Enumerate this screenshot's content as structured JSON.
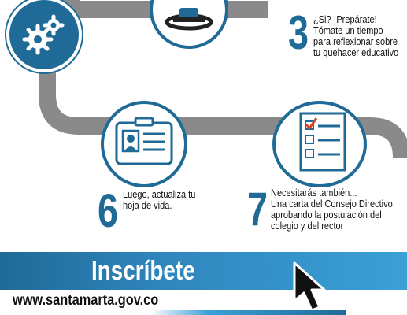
{
  "steps": [
    {
      "number": "3",
      "lines": [
        "¿Si? ¡Prepárate!",
        "Tómate un tiempo",
        "para reflexionar sobre",
        "tu quehacer educativo"
      ]
    },
    {
      "number": "6",
      "lines": [
        "Luego, actualiza tu",
        "hoja de vida."
      ]
    },
    {
      "number": "7",
      "lines": [
        "Necesitarás también...",
        "Una carta del Consejo Directivo",
        "aprobando la postulación del",
        "colegio y del rector"
      ]
    }
  ],
  "banner": {
    "title": "Inscríbete"
  },
  "website": {
    "url": "www.santamarta.gov.co"
  },
  "icons": [
    "gears-icon",
    "person-desk-icon",
    "id-card-icon",
    "checklist-icon",
    "cursor-arrow-icon"
  ],
  "colors": {
    "primary": "#1f6a96",
    "accent": "#3aa0d6",
    "road": "#8a8a8a",
    "check": "#e0452b"
  }
}
